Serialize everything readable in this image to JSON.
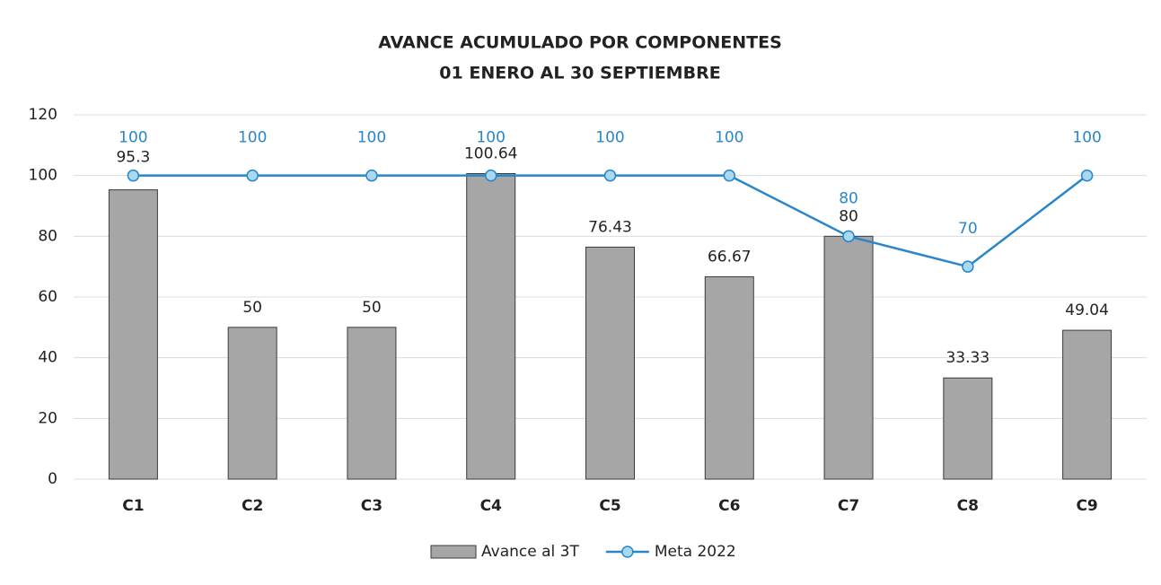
{
  "chart_data": {
    "type": "bar",
    "title": [
      "AVANCE ACUMULADO POR COMPONENTES",
      "01 ENERO AL 30 SEPTIEMBRE"
    ],
    "categories": [
      "C1",
      "C2",
      "C3",
      "C4",
      "C5",
      "C6",
      "C7",
      "C8",
      "C9"
    ],
    "series": [
      {
        "name": "Avance al 3T",
        "type": "bar",
        "color": "#a6a6a6",
        "values": [
          95.3,
          50,
          50,
          100.64,
          76.43,
          66.67,
          80,
          33.33,
          49.04
        ]
      },
      {
        "name": "Meta 2022",
        "type": "line",
        "color": "#2a86c9",
        "values": [
          100,
          100,
          100,
          100,
          100,
          100,
          80,
          70,
          100
        ]
      }
    ],
    "ylim": [
      0,
      120
    ],
    "yticks": [
      0,
      20,
      40,
      60,
      80,
      100,
      120
    ],
    "grid": true,
    "legend": "bottom"
  }
}
